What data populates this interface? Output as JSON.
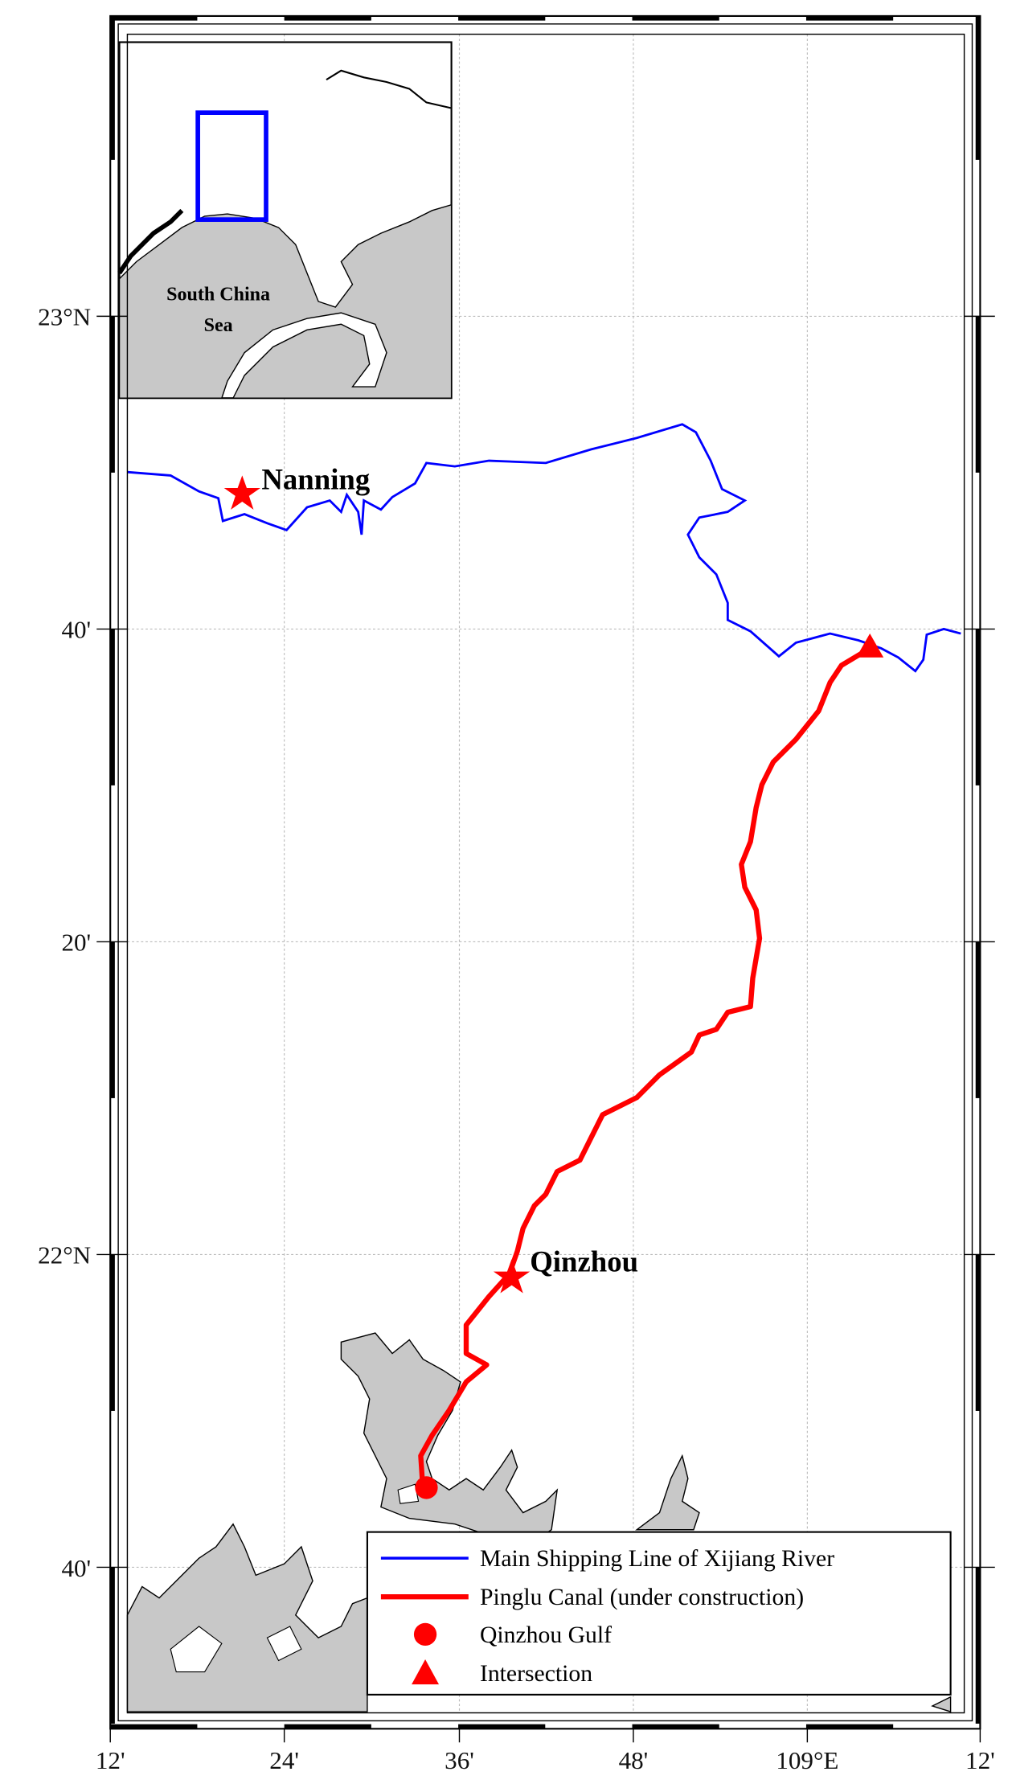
{
  "axes": {
    "lat_labels": [
      "23°N",
      "40'",
      "20'",
      "22°N",
      "40'"
    ],
    "lon_labels": [
      "12'",
      "24'",
      "36'",
      "48'",
      "109°E",
      "12'"
    ]
  },
  "inset": {
    "label_line1": "South China",
    "label_line2": "Sea"
  },
  "places": [
    {
      "label": "Nanning"
    },
    {
      "label": "Qinzhou"
    }
  ],
  "legend": [
    "Main Shipping Line of Xijiang River",
    "Pinglu Canal (under construction)",
    "Qinzhou Gulf",
    "Intersection"
  ]
}
